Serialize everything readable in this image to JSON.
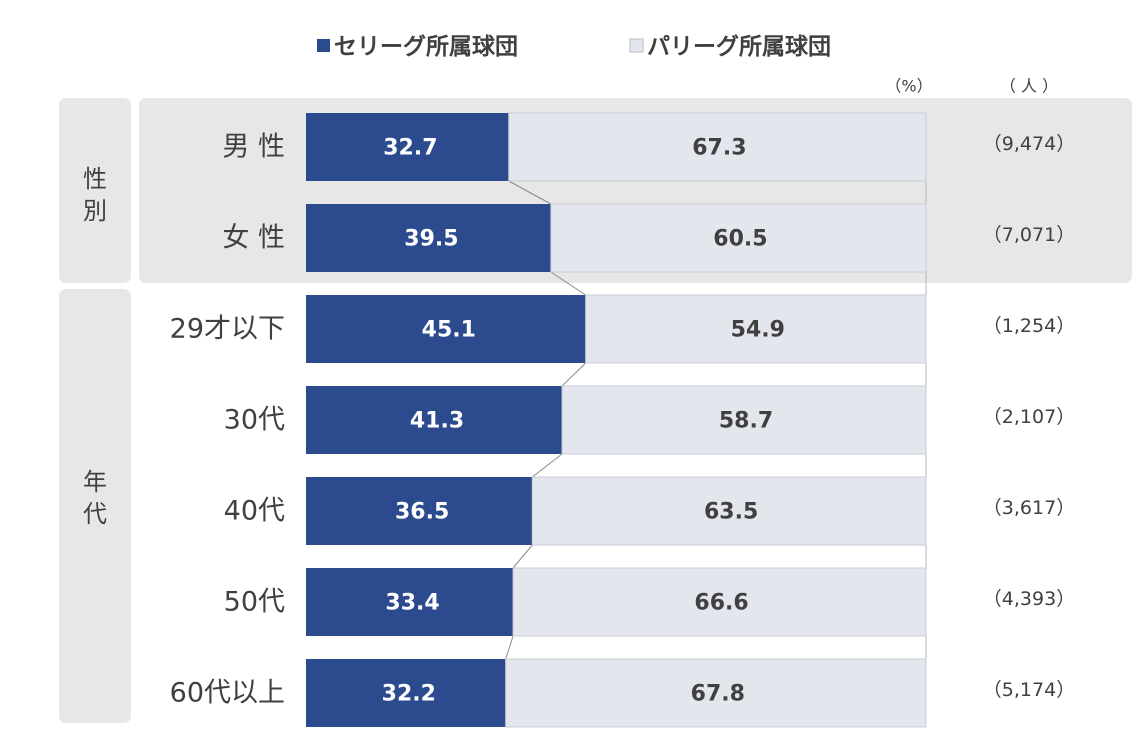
{
  "chart_data": {
    "type": "bar",
    "orientation": "horizontal",
    "stacked": "100%",
    "legend": [
      {
        "name": "セリーグ所属球団",
        "color": "#2c4a8e"
      },
      {
        "name": "パリーグ所属球団",
        "color": "#e4e6ee"
      }
    ],
    "legend_position": "top",
    "unit_percent_label": "（%）",
    "unit_people_label": "（ 人 ）",
    "groups": [
      {
        "label": "性別",
        "categories": [
          "男 性",
          "女 性"
        ]
      },
      {
        "label": "年代",
        "categories": [
          "29才以下",
          "30代",
          "40代",
          "50代",
          "60代以上"
        ]
      }
    ],
    "categories": [
      "男 性",
      "女 性",
      "29才以下",
      "30代",
      "40代",
      "50代",
      "60代以上"
    ],
    "series": [
      {
        "name": "セリーグ所属球団",
        "values": [
          32.7,
          39.5,
          45.1,
          41.3,
          36.5,
          33.4,
          32.2
        ]
      },
      {
        "name": "パリーグ所属球団",
        "values": [
          67.3,
          60.5,
          54.9,
          58.7,
          63.5,
          66.6,
          67.8
        ]
      }
    ],
    "value_labels": {
      "se": [
        "32.7",
        "39.5",
        "45.1",
        "41.3",
        "36.5",
        "33.4",
        "32.2"
      ],
      "pa": [
        "67.3",
        "60.5",
        "54.9",
        "58.7",
        "63.5",
        "66.6",
        "67.8"
      ]
    },
    "counts": [
      "（9,474）",
      "（7,071）",
      "（1,254）",
      "（2,107）",
      "（3,617）",
      "（4,393）",
      "（5,174）"
    ],
    "xlim": [
      0,
      100
    ]
  }
}
